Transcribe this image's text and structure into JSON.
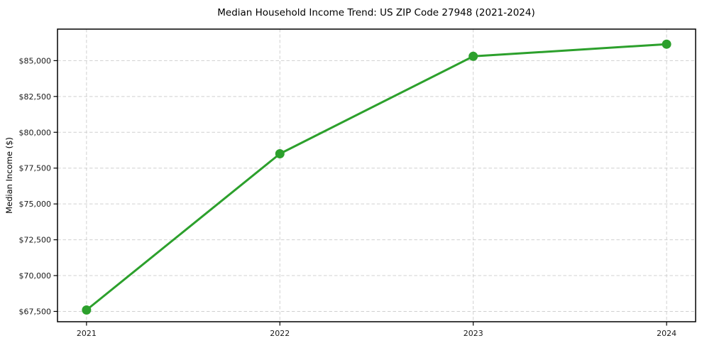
{
  "chart_data": {
    "type": "line",
    "title": "Median Household Income Trend: US ZIP Code 27948 (2021-2024)",
    "xlabel": "",
    "ylabel": "Median Income ($)",
    "categories": [
      "2021",
      "2022",
      "2023",
      "2024"
    ],
    "x": [
      2021,
      2022,
      2023,
      2024
    ],
    "series": [
      {
        "name": "Median household income",
        "values": [
          67600,
          78500,
          85300,
          86150
        ],
        "color": "#2ca02c",
        "marker": "circle"
      }
    ],
    "yticks": {
      "values": [
        67500,
        70000,
        72500,
        75000,
        77500,
        80000,
        82500,
        85000
      ],
      "labels": [
        "$67,500",
        "$70,000",
        "$72,500",
        "$75,000",
        "$77,500",
        "$80,000",
        "$82,500",
        "$85,000"
      ]
    },
    "xlim": [
      2020.85,
      2024.15
    ],
    "ylim": [
      66780,
      87200
    ],
    "grid": true,
    "grid_style": "dashed",
    "grid_color": "#d0d0d0",
    "axis_color": "#000000",
    "background": "#ffffff",
    "legend_position": "none"
  }
}
